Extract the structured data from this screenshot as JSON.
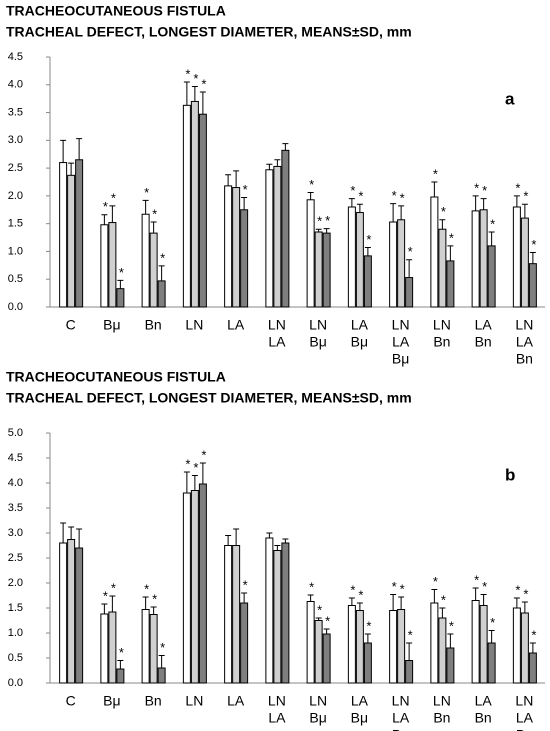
{
  "chart_data": [
    {
      "type": "bar",
      "title": "TRACHEOCUTANEOUS FISTULA",
      "subtitle": "TRACHEAL  DEFECT, LONGEST DIAMETER, MEANS±SD, mm",
      "panel_label": "a",
      "categories": [
        [
          "C"
        ],
        [
          "Bμ"
        ],
        [
          "Bn"
        ],
        [
          "LN"
        ],
        [
          "LA"
        ],
        [
          "LN",
          "LA"
        ],
        [
          "LN",
          "Bμ"
        ],
        [
          "LA",
          "Bμ"
        ],
        [
          "LN",
          "LA",
          "Bμ"
        ],
        [
          "LN",
          "Bn"
        ],
        [
          "LA",
          "Bn"
        ],
        [
          "LN",
          "LA",
          "Bn"
        ]
      ],
      "ylim": [
        0,
        4.5
      ],
      "yticks": [
        {
          "value": 0,
          "label": "0.0"
        },
        0.5,
        {
          "value": 1,
          "label": "1.0"
        },
        1.5,
        {
          "value": 2,
          "label": "2.0"
        },
        2.5,
        {
          "value": 3,
          "label": "3.0"
        },
        3.5,
        {
          "value": 4,
          "label": "4.0"
        },
        4.5
      ],
      "grid": false,
      "series": [
        {
          "color": "#ffffff",
          "values": [
            2.6,
            1.48,
            1.67,
            3.63,
            2.18,
            2.47,
            1.93,
            1.8,
            1.53,
            1.98,
            1.73,
            1.8
          ],
          "errors": [
            0.4,
            0.18,
            0.25,
            0.42,
            0.2,
            0.1,
            0.13,
            0.15,
            0.33,
            0.27,
            0.27,
            0.2
          ],
          "stars": [
            null,
            "*",
            "*",
            "*",
            null,
            null,
            "*",
            "*",
            "*",
            "*",
            "*",
            "*"
          ]
        },
        {
          "color": "#d0d0d0",
          "values": [
            2.37,
            1.52,
            1.33,
            3.7,
            2.15,
            2.53,
            1.35,
            1.7,
            1.57,
            1.4,
            1.75,
            1.6
          ],
          "errors": [
            0.22,
            0.3,
            0.2,
            0.27,
            0.3,
            0.12,
            0.05,
            0.15,
            0.25,
            0.17,
            0.2,
            0.25
          ],
          "stars": [
            null,
            "*",
            "*",
            "*",
            null,
            null,
            "*",
            "*",
            "*",
            "*",
            "*",
            "*"
          ]
        },
        {
          "color": "#7f7f7f",
          "values": [
            2.65,
            0.33,
            0.47,
            3.47,
            1.75,
            2.82,
            1.33,
            0.92,
            0.53,
            0.83,
            1.1,
            0.78
          ],
          "errors": [
            0.38,
            0.15,
            0.27,
            0.4,
            0.22,
            0.12,
            0.08,
            0.15,
            0.32,
            0.27,
            0.25,
            0.2
          ],
          "stars": [
            null,
            "*",
            "*",
            "*",
            "*",
            null,
            "*",
            "*",
            "*",
            "*",
            "*",
            "*"
          ]
        }
      ]
    },
    {
      "type": "bar",
      "title": "TRACHEOCUTANEOUS FISTULA",
      "subtitle": "TRACHEAL  DEFECT, LONGEST DIAMETER, MEANS±SD, mm",
      "panel_label": "b",
      "categories": [
        [
          "C"
        ],
        [
          "Bμ"
        ],
        [
          "Bn"
        ],
        [
          "LN"
        ],
        [
          "LA"
        ],
        [
          "LN",
          "LA"
        ],
        [
          "LN",
          "Bμ"
        ],
        [
          "LA",
          "Bμ"
        ],
        [
          "LN",
          "LA",
          "Bμ"
        ],
        [
          "LN",
          "Bn"
        ],
        [
          "LA",
          "Bn"
        ],
        [
          "LN",
          "LA",
          "Bn"
        ]
      ],
      "ylim": [
        0,
        5
      ],
      "yticks": [
        {
          "value": 0,
          "label": "0.0"
        },
        0.5,
        {
          "value": 1,
          "label": "1.0"
        },
        1.5,
        {
          "value": 2,
          "label": "2.0"
        },
        2.5,
        {
          "value": 3,
          "label": "3.0"
        },
        3.5,
        {
          "value": 4,
          "label": "4.0"
        },
        4.5,
        {
          "value": 5,
          "label": "5.0"
        }
      ],
      "grid": false,
      "series": [
        {
          "color": "#ffffff",
          "values": [
            2.8,
            1.38,
            1.47,
            3.8,
            2.75,
            2.9,
            1.63,
            1.55,
            1.45,
            1.6,
            1.65,
            1.5
          ],
          "errors": [
            0.4,
            0.2,
            0.25,
            0.42,
            0.2,
            0.1,
            0.13,
            0.15,
            0.32,
            0.27,
            0.25,
            0.2
          ],
          "stars": [
            null,
            "*",
            "*",
            "*",
            null,
            null,
            "*",
            "*",
            "*",
            "*",
            "*",
            "*"
          ]
        },
        {
          "color": "#d0d0d0",
          "values": [
            2.87,
            1.42,
            1.37,
            3.85,
            2.75,
            2.65,
            1.25,
            1.45,
            1.47,
            1.3,
            1.55,
            1.4
          ],
          "errors": [
            0.25,
            0.32,
            0.15,
            0.3,
            0.33,
            0.1,
            0.05,
            0.15,
            0.25,
            0.2,
            0.22,
            0.22
          ],
          "stars": [
            null,
            "*",
            "*",
            "*",
            null,
            null,
            "*",
            "*",
            "*",
            "*",
            "*",
            "*"
          ]
        },
        {
          "color": "#7f7f7f",
          "values": [
            2.7,
            0.28,
            0.3,
            3.98,
            1.6,
            2.8,
            0.98,
            0.8,
            0.45,
            0.7,
            0.8,
            0.6
          ],
          "errors": [
            0.38,
            0.17,
            0.25,
            0.42,
            0.2,
            0.08,
            0.1,
            0.18,
            0.35,
            0.28,
            0.25,
            0.2
          ],
          "stars": [
            null,
            "*",
            "*",
            "*",
            "*",
            null,
            "*",
            "*",
            "*",
            "*",
            "*",
            "*"
          ]
        }
      ]
    }
  ]
}
